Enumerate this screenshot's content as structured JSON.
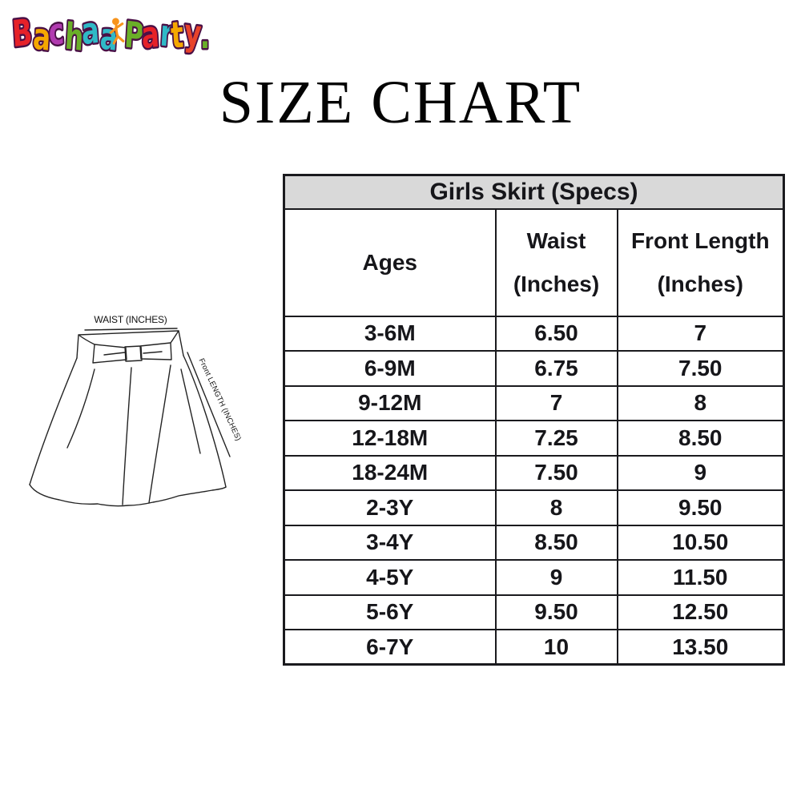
{
  "logo": {
    "brand": "Bachaa Party",
    "outline_color": "#4a1046",
    "figure_color": "#f7941d",
    "letters": [
      {
        "ch": "B",
        "color": "#e62129"
      },
      {
        "ch": "a",
        "color": "#f5a800"
      },
      {
        "ch": "c",
        "color": "#b13bb0"
      },
      {
        "ch": "h",
        "color": "#6aaf28"
      },
      {
        "ch": "a",
        "color": "#2fb9c7"
      },
      {
        "ch": "a",
        "color": "#2fb9c7"
      },
      {
        "ch": "P",
        "color": "#6aaf28"
      },
      {
        "ch": "a",
        "color": "#e62129"
      },
      {
        "ch": "r",
        "color": "#2fb9c7"
      },
      {
        "ch": "t",
        "color": "#f5a800"
      },
      {
        "ch": "y",
        "color": "#e8432a"
      },
      {
        "ch": ".",
        "color": "#6aaf28"
      }
    ]
  },
  "page_title": "SIZE CHART",
  "colors": {
    "table_border": "#1a1a1e",
    "table_title_bg": "#d9d9d9",
    "text": "#16161a",
    "logo_outline": "#4a1046",
    "logo_figure": "#f7941d"
  },
  "size_table": {
    "title": "Girls Skirt (Specs)",
    "columns": {
      "ages": "Ages",
      "waist_line1": "Waist",
      "waist_line2": "(Inches)",
      "front_line1": "Front Length",
      "front_line2": "(Inches)"
    },
    "rows": [
      {
        "age": "3-6M",
        "waist": "6.50",
        "front_length": "7"
      },
      {
        "age": "6-9M",
        "waist": "6.75",
        "front_length": "7.50"
      },
      {
        "age": "9-12M",
        "waist": "7",
        "front_length": "8"
      },
      {
        "age": "12-18M",
        "waist": "7.25",
        "front_length": "8.50"
      },
      {
        "age": "18-24M",
        "waist": "7.50",
        "front_length": "9"
      },
      {
        "age": "2-3Y",
        "waist": "8",
        "front_length": "9.50"
      },
      {
        "age": "3-4Y",
        "waist": "8.50",
        "front_length": "10.50"
      },
      {
        "age": "4-5Y",
        "waist": "9",
        "front_length": "11.50"
      },
      {
        "age": "5-6Y",
        "waist": "9.50",
        "front_length": "12.50"
      },
      {
        "age": "6-7Y",
        "waist": "10",
        "front_length": "13.50"
      }
    ]
  },
  "diagram": {
    "waist_label": "WAIST (INCHES)",
    "front_length_label": "Front LENGTH (INCHES)"
  }
}
